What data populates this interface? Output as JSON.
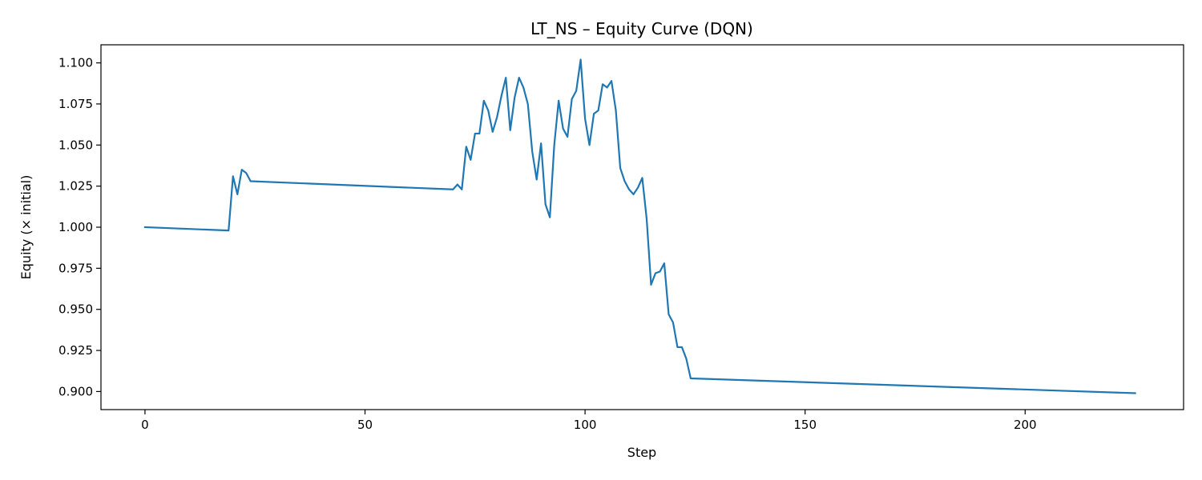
{
  "chart_data": {
    "type": "line",
    "title": "LT_NS – Equity Curve (DQN)",
    "xlabel": "Step",
    "ylabel": "Equity (× initial)",
    "xlim": [
      -10,
      236
    ],
    "ylim": [
      0.889,
      1.111
    ],
    "xticks": [
      0,
      50,
      100,
      150,
      200
    ],
    "xtick_labels": [
      "0",
      "50",
      "100",
      "150",
      "200"
    ],
    "yticks": [
      0.9,
      0.925,
      0.95,
      0.975,
      1.0,
      1.025,
      1.05,
      1.075,
      1.1
    ],
    "ytick_labels": [
      "0.900",
      "0.925",
      "0.950",
      "0.975",
      "1.000",
      "1.025",
      "1.050",
      "1.075",
      "1.100"
    ],
    "grid": false,
    "color": "#1f77b4",
    "series": [
      {
        "x": [
          0,
          19,
          20,
          21,
          22,
          23,
          24,
          70,
          71,
          72,
          73,
          74,
          75,
          76,
          77,
          78,
          79,
          80,
          81,
          82,
          83,
          84,
          85,
          86,
          87,
          88,
          89,
          90,
          91,
          92,
          93,
          94,
          95,
          96,
          97,
          98,
          99,
          100,
          101,
          102,
          103,
          104,
          105,
          106,
          107,
          108,
          109,
          110,
          111,
          112,
          113,
          114,
          115,
          116,
          117,
          118,
          119,
          120,
          121,
          122,
          123,
          124,
          225
        ],
        "y": [
          1.0,
          0.998,
          1.031,
          1.02,
          1.035,
          1.033,
          1.028,
          1.023,
          1.026,
          1.023,
          1.049,
          1.041,
          1.057,
          1.057,
          1.077,
          1.071,
          1.058,
          1.067,
          1.08,
          1.091,
          1.059,
          1.079,
          1.091,
          1.085,
          1.075,
          1.046,
          1.029,
          1.051,
          1.014,
          1.006,
          1.05,
          1.077,
          1.06,
          1.055,
          1.078,
          1.083,
          1.102,
          1.066,
          1.05,
          1.069,
          1.071,
          1.087,
          1.085,
          1.089,
          1.071,
          1.036,
          1.028,
          1.023,
          1.02,
          1.024,
          1.03,
          1.005,
          0.965,
          0.972,
          0.973,
          0.978,
          0.947,
          0.942,
          0.927,
          0.927,
          0.92,
          0.908,
          0.899
        ]
      }
    ]
  }
}
